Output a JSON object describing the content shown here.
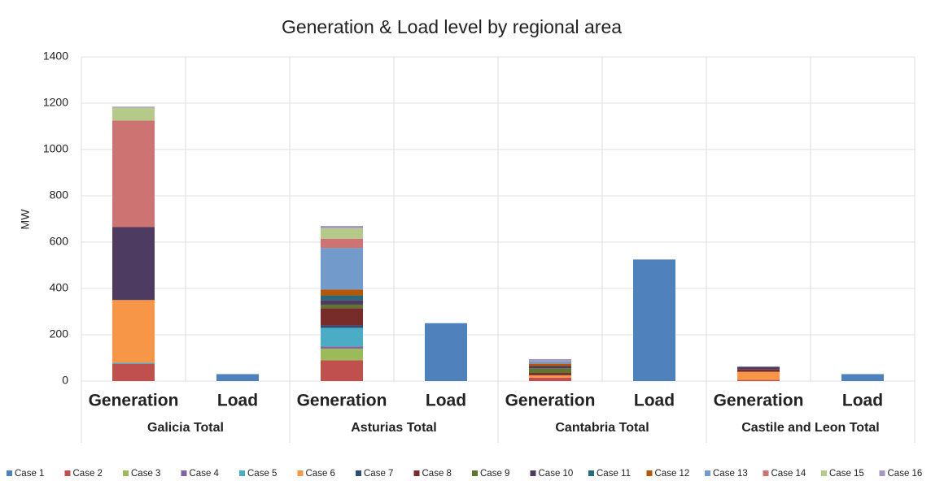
{
  "chart_data": {
    "type": "stacked_bar",
    "title": "Generation & Load level by regional area",
    "y_label": "MW",
    "categories": [
      "Generation",
      "Load",
      "Generation",
      "Load",
      "Generation",
      "Load",
      "Generation",
      "Load"
    ],
    "groups": [
      "Galicia Total",
      "Asturias Total",
      "Cantabria Total",
      "Castile and Leon Total"
    ],
    "ylim": [
      0,
      1400
    ],
    "yticks": [
      0,
      200,
      400,
      600,
      800,
      1000,
      1200,
      1400
    ],
    "grid": true,
    "series": [
      {
        "name": "Case 1",
        "color": "#4f81bd",
        "values": [
          0,
          30,
          0,
          250,
          0,
          525,
          0,
          30
        ]
      },
      {
        "name": "Case 2",
        "color": "#c0504d",
        "values": [
          75,
          0,
          90,
          0,
          15,
          0,
          5,
          0
        ]
      },
      {
        "name": "Case 3",
        "color": "#9bbb59",
        "values": [
          0,
          0,
          50,
          0,
          0,
          0,
          0,
          0
        ]
      },
      {
        "name": "Case 4",
        "color": "#8064a2",
        "values": [
          0,
          0,
          10,
          0,
          0,
          0,
          0,
          0
        ]
      },
      {
        "name": "Case 5",
        "color": "#4bacc6",
        "values": [
          5,
          0,
          80,
          0,
          0,
          0,
          0,
          0
        ]
      },
      {
        "name": "Case 6",
        "color": "#f79646",
        "values": [
          270,
          0,
          0,
          0,
          10,
          0,
          35,
          0
        ]
      },
      {
        "name": "Case 7",
        "color": "#2c4d75",
        "values": [
          0,
          0,
          10,
          0,
          0,
          0,
          0,
          0
        ]
      },
      {
        "name": "Case 8",
        "color": "#772c2a",
        "values": [
          0,
          0,
          75,
          0,
          10,
          0,
          10,
          0
        ]
      },
      {
        "name": "Case 9",
        "color": "#5f7530",
        "values": [
          0,
          0,
          15,
          0,
          20,
          0,
          0,
          0
        ]
      },
      {
        "name": "Case 10",
        "color": "#4d3b62",
        "values": [
          315,
          0,
          20,
          0,
          10,
          0,
          12,
          0
        ]
      },
      {
        "name": "Case 11",
        "color": "#276a7c",
        "values": [
          0,
          0,
          20,
          0,
          0,
          0,
          0,
          0
        ]
      },
      {
        "name": "Case 12",
        "color": "#b65708",
        "values": [
          0,
          0,
          25,
          0,
          10,
          0,
          0,
          0
        ]
      },
      {
        "name": "Case 13",
        "color": "#729aca",
        "values": [
          0,
          0,
          180,
          0,
          10,
          0,
          0,
          0
        ]
      },
      {
        "name": "Case 14",
        "color": "#cd7371",
        "values": [
          460,
          0,
          40,
          0,
          0,
          0,
          0,
          0
        ]
      },
      {
        "name": "Case 15",
        "color": "#b5ca88",
        "values": [
          55,
          0,
          45,
          0,
          0,
          0,
          0,
          0
        ]
      },
      {
        "name": "Case 16",
        "color": "#a598be",
        "values": [
          5,
          0,
          10,
          0,
          10,
          0,
          0,
          0
        ]
      }
    ]
  }
}
